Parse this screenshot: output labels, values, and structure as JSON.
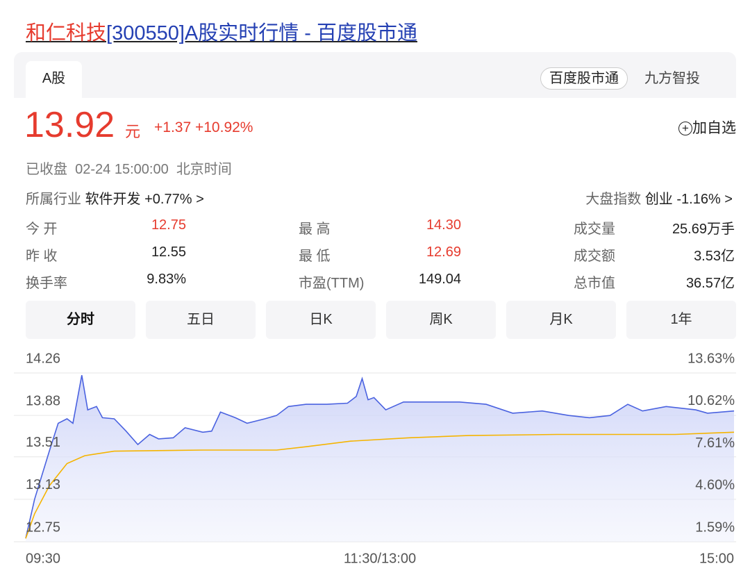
{
  "header": {
    "title_highlight": "和仁科技",
    "title_rest": "[300550]A股实时行情 - 百度股市通"
  },
  "tabs": {
    "active": "A股",
    "sources": [
      "百度股市通",
      "九方智投"
    ]
  },
  "quote": {
    "price": "13.92",
    "unit": "元",
    "change": "+1.37",
    "change_pct": "+10.92%",
    "add_watch": "加自选",
    "status": "已收盘",
    "time": "02-24 15:00:00",
    "timezone": "北京时间"
  },
  "industry": {
    "label": "所属行业",
    "name": "软件开发",
    "change": "+0.77%"
  },
  "index": {
    "label": "大盘指数",
    "name": "创业",
    "change": "-1.16%"
  },
  "stats": [
    [
      "今 开",
      "12.75",
      "最 高",
      "14.30",
      "成交量",
      "25.69万手"
    ],
    [
      "昨 收",
      "12.55",
      "最 低",
      "12.69",
      "成交额",
      "3.53亿"
    ],
    [
      "换手率",
      "9.83%",
      "市盈(TTM)",
      "149.04",
      "总市值",
      "36.57亿"
    ]
  ],
  "periods": [
    "分时",
    "五日",
    "日K",
    "周K",
    "月K",
    "1年"
  ],
  "chart_data": {
    "type": "line",
    "series": [
      {
        "name": "price",
        "color": "#4a62e0",
        "x": [
          0,
          3,
          8,
          11,
          14,
          16,
          19,
          21,
          24,
          26,
          30,
          34,
          38,
          42,
          45,
          50,
          54,
          60,
          63,
          66,
          71,
          75,
          81,
          85,
          89,
          95,
          102,
          109,
          112,
          114,
          116,
          118,
          122,
          128,
          137,
          147,
          156,
          165,
          175,
          184,
          191,
          198,
          204,
          209,
          217,
          227,
          231,
          240
        ],
        "values": [
          12.78,
          13.13,
          13.56,
          13.81,
          13.85,
          13.81,
          14.24,
          13.93,
          13.96,
          13.86,
          13.85,
          13.74,
          13.62,
          13.71,
          13.67,
          13.68,
          13.77,
          13.73,
          13.74,
          13.91,
          13.86,
          13.81,
          13.85,
          13.88,
          13.96,
          13.98,
          13.98,
          13.99,
          14.05,
          14.21,
          14.02,
          14.04,
          13.93,
          14.0,
          14.0,
          14.0,
          13.98,
          13.9,
          13.92,
          13.88,
          13.86,
          13.88,
          13.98,
          13.92,
          13.96,
          13.93,
          13.9,
          13.92
        ]
      },
      {
        "name": "average",
        "color": "#f5b400",
        "x": [
          0,
          3,
          8,
          14,
          20,
          30,
          60,
          85,
          95,
          110,
          130,
          150,
          180,
          220,
          240
        ],
        "values": [
          12.78,
          13.0,
          13.25,
          13.45,
          13.52,
          13.56,
          13.57,
          13.57,
          13.6,
          13.65,
          13.68,
          13.7,
          13.71,
          13.71,
          13.73
        ]
      }
    ],
    "xlim": [
      0,
      240
    ],
    "xticks": [
      {
        "value": 0,
        "label": "09:30"
      },
      {
        "value": 120,
        "label": "11:30/13:00"
      },
      {
        "value": 240,
        "label": "15:00"
      }
    ],
    "ylim": [
      12.75,
      14.26
    ],
    "yticks": [
      14.26,
      13.88,
      13.51,
      13.13,
      12.75
    ],
    "y2lim": [
      1.59,
      13.63
    ],
    "y2ticks": [
      {
        "value": 13.63,
        "label": "13.63%"
      },
      {
        "value": 10.62,
        "label": "10.62%"
      },
      {
        "value": 7.61,
        "label": "7.61%"
      },
      {
        "value": 4.6,
        "label": "4.60%"
      },
      {
        "value": 1.59,
        "label": "1.59%"
      }
    ],
    "grid": true
  }
}
